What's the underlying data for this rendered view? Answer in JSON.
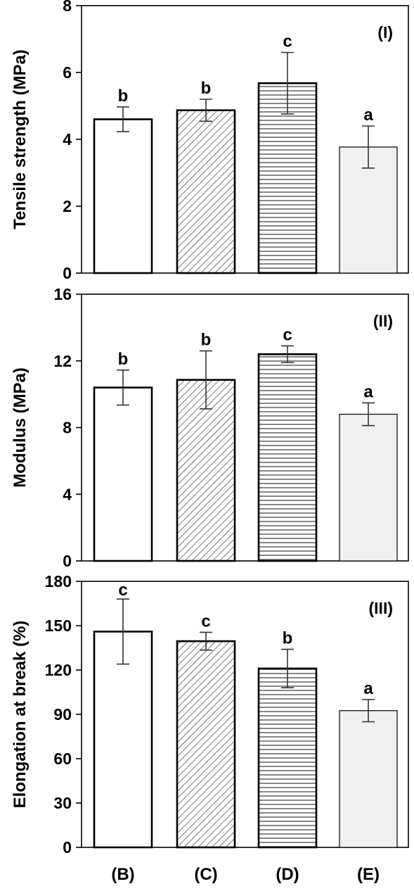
{
  "colors": {
    "axis": "#000000",
    "bar_fill_plain": "#ffffff",
    "bar_fill_gray": "#f0f0f0",
    "bar_stroke": "#000000",
    "error_bar": "#333333",
    "hatch": "#555555"
  },
  "chart_data": [
    {
      "type": "bar",
      "panel_label": "(I)",
      "ylabel": "Tensile strength (MPa)",
      "ylim": [
        0,
        8
      ],
      "yticks": [
        0,
        2,
        4,
        6,
        8
      ],
      "grid": false,
      "categories": [
        "(B)",
        "(C)",
        "(D)",
        "(E)"
      ],
      "patterns": [
        "plain",
        "diagonal",
        "horizontal",
        "gray"
      ],
      "values": [
        4.6,
        4.87,
        5.68,
        3.77
      ],
      "errors": [
        0.37,
        0.33,
        0.92,
        0.63
      ],
      "letters": [
        "b",
        "b",
        "c",
        "a"
      ]
    },
    {
      "type": "bar",
      "panel_label": "(II)",
      "ylabel": "Modulus (MPa)",
      "ylim": [
        0,
        16
      ],
      "yticks": [
        0,
        4,
        8,
        12,
        16
      ],
      "grid": false,
      "categories": [
        "(B)",
        "(C)",
        "(D)",
        "(E)"
      ],
      "patterns": [
        "plain",
        "diagonal",
        "horizontal",
        "gray"
      ],
      "values": [
        10.4,
        10.86,
        12.4,
        8.8
      ],
      "errors": [
        1.05,
        1.74,
        0.5,
        0.68
      ],
      "letters": [
        "b",
        "b",
        "c",
        "a"
      ]
    },
    {
      "type": "bar",
      "panel_label": "(III)",
      "ylabel": "Elongation at break (%)",
      "ylim": [
        0,
        180
      ],
      "yticks": [
        0,
        30,
        60,
        90,
        120,
        150,
        180
      ],
      "grid": false,
      "categories": [
        "(B)",
        "(C)",
        "(D)",
        "(E)"
      ],
      "patterns": [
        "plain",
        "diagonal",
        "horizontal",
        "gray"
      ],
      "values": [
        146,
        139.5,
        121,
        92.5
      ],
      "errors": [
        22,
        6,
        13,
        7.5
      ],
      "letters": [
        "c",
        "c",
        "b",
        "a"
      ]
    }
  ],
  "x_axis": {
    "tick_labels": [
      "(B)",
      "(C)",
      "(D)",
      "(E)"
    ]
  }
}
